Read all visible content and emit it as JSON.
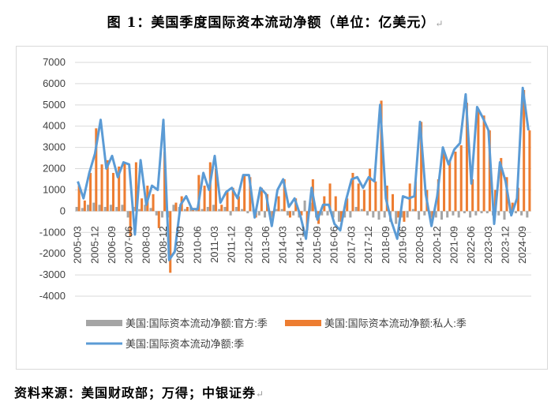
{
  "title": "图 1：美国季度国际资本流动净额（单位：亿美元）",
  "title_mark": "↵",
  "source": "资料来源：美国财政部；万得；中银证券",
  "source_mark": "↵",
  "colors": {
    "official": "#a5a5a5",
    "private": "#ed7d31",
    "total": "#5b9bd5",
    "grid": "#d9d9d9"
  },
  "chart_data": {
    "type": "bar",
    "yticks": [
      -4000,
      -3000,
      -2000,
      -1000,
      0,
      1000,
      2000,
      3000,
      4000,
      5000,
      6000,
      7000
    ],
    "ylim": [
      -4000,
      7000
    ],
    "grid": true,
    "legend_position": "bottom",
    "x_tick_labels": [
      "2005-03",
      "2005-12",
      "2006-09",
      "2007-06",
      "2008-03",
      "2008-12",
      "2009-09",
      "2010-06",
      "2011-03",
      "2011-12",
      "2012-09",
      "2013-06",
      "2014-03",
      "2014-12",
      "2015-09",
      "2016-06",
      "2017-03",
      "2017-12",
      "2018-09",
      "2019-06",
      "2020-03",
      "2020-12",
      "2021-09",
      "2022-06",
      "2023-03",
      "2023-12",
      "2024-09"
    ],
    "categories": [
      "2005-03",
      "2005-06",
      "2005-09",
      "2005-12",
      "2006-03",
      "2006-06",
      "2006-09",
      "2006-12",
      "2007-03",
      "2007-06",
      "2007-09",
      "2007-12",
      "2008-03",
      "2008-06",
      "2008-09",
      "2008-12",
      "2009-03",
      "2009-06",
      "2009-09",
      "2009-12",
      "2010-03",
      "2010-06",
      "2010-09",
      "2010-12",
      "2011-03",
      "2011-06",
      "2011-09",
      "2011-12",
      "2012-03",
      "2012-06",
      "2012-09",
      "2012-12",
      "2013-03",
      "2013-06",
      "2013-09",
      "2013-12",
      "2014-03",
      "2014-06",
      "2014-09",
      "2014-12",
      "2015-03",
      "2015-06",
      "2015-09",
      "2015-12",
      "2016-03",
      "2016-06",
      "2016-09",
      "2016-12",
      "2017-03",
      "2017-06",
      "2017-09",
      "2017-12",
      "2018-03",
      "2018-06",
      "2018-09",
      "2018-12",
      "2019-03",
      "2019-06",
      "2019-09",
      "2019-12",
      "2020-03",
      "2020-06",
      "2020-09",
      "2020-12",
      "2021-03",
      "2021-06",
      "2021-09",
      "2021-12",
      "2022-03",
      "2022-06",
      "2022-09",
      "2022-12",
      "2023-03",
      "2023-06",
      "2023-09",
      "2023-12",
      "2024-03",
      "2024-06",
      "2024-09",
      "2024-12"
    ],
    "series": [
      {
        "name": "美国:国际资本流动净额:官方:季",
        "type": "bar",
        "values": [
          200,
          150,
          300,
          400,
          300,
          200,
          300,
          200,
          300,
          -300,
          200,
          100,
          300,
          150,
          -200,
          -300,
          -300,
          300,
          200,
          100,
          200,
          150,
          100,
          200,
          300,
          100,
          200,
          -200,
          200,
          100,
          -100,
          100,
          -200,
          -300,
          -400,
          100,
          100,
          -200,
          -200,
          -300,
          500,
          400,
          -300,
          -200,
          -200,
          -300,
          -500,
          -300,
          -300,
          200,
          100,
          -200,
          -300,
          -400,
          -300,
          -500,
          -600,
          -300,
          -300,
          100,
          -400,
          -200,
          -300,
          -300,
          -400,
          -300,
          -200,
          -300,
          -100,
          -300,
          -200,
          -100,
          -100,
          -200,
          -200,
          -400,
          -100,
          -100,
          -200,
          -300
        ]
      },
      {
        "name": "美国:国际资本流动净额:私人:季",
        "type": "bar",
        "values": [
          1200,
          500,
          1800,
          3900,
          2200,
          2400,
          1800,
          2100,
          2300,
          -1200,
          2300,
          600,
          1200,
          800,
          -800,
          2800,
          -2900,
          400,
          700,
          200,
          150,
          1700,
          1200,
          2300,
          2000,
          300,
          900,
          1100,
          700,
          1700,
          1600,
          -300,
          1100,
          800,
          -300,
          700,
          1500,
          -300,
          600,
          -200,
          -900,
          1500,
          -600,
          700,
          1300,
          700,
          -500,
          600,
          1800,
          1300,
          1000,
          2000,
          1400,
          5200,
          1200,
          800,
          -300,
          -500,
          1300,
          1400,
          4200,
          1000,
          -400,
          1500,
          2800,
          2400,
          2800,
          3100,
          5100,
          1500,
          4700,
          4500,
          3800,
          1000,
          2500,
          1600,
          400,
          1100,
          5700,
          3800
        ]
      },
      {
        "name": "美国:国际资本流动净额:季",
        "type": "line",
        "values": [
          1400,
          600,
          1800,
          2700,
          4300,
          2000,
          2600,
          1600,
          2300,
          2200,
          -1100,
          2400,
          300,
          1200,
          1000,
          4300,
          -2300,
          -1900,
          300,
          700,
          100,
          100,
          1800,
          1000,
          2600,
          400,
          900,
          1100,
          600,
          1700,
          1700,
          -300,
          1100,
          800,
          -700,
          1000,
          1500,
          200,
          600,
          -200,
          -1300,
          1100,
          -400,
          300,
          300,
          -600,
          -900,
          500,
          1500,
          1600,
          1100,
          1600,
          1400,
          5000,
          600,
          -500,
          -1300,
          700,
          600,
          700,
          4200,
          800,
          -700,
          700,
          3000,
          2200,
          2900,
          3200,
          5500,
          1300,
          4900,
          4400,
          3800,
          -600,
          2300,
          1400,
          -200,
          600,
          5800,
          3800
        ]
      }
    ]
  },
  "legend": {
    "official": "美国:国际资本流动净额:官方:季",
    "private": "美国:国际资本流动净额:私人:季",
    "total": "美国:国际资本流动净额:季"
  }
}
